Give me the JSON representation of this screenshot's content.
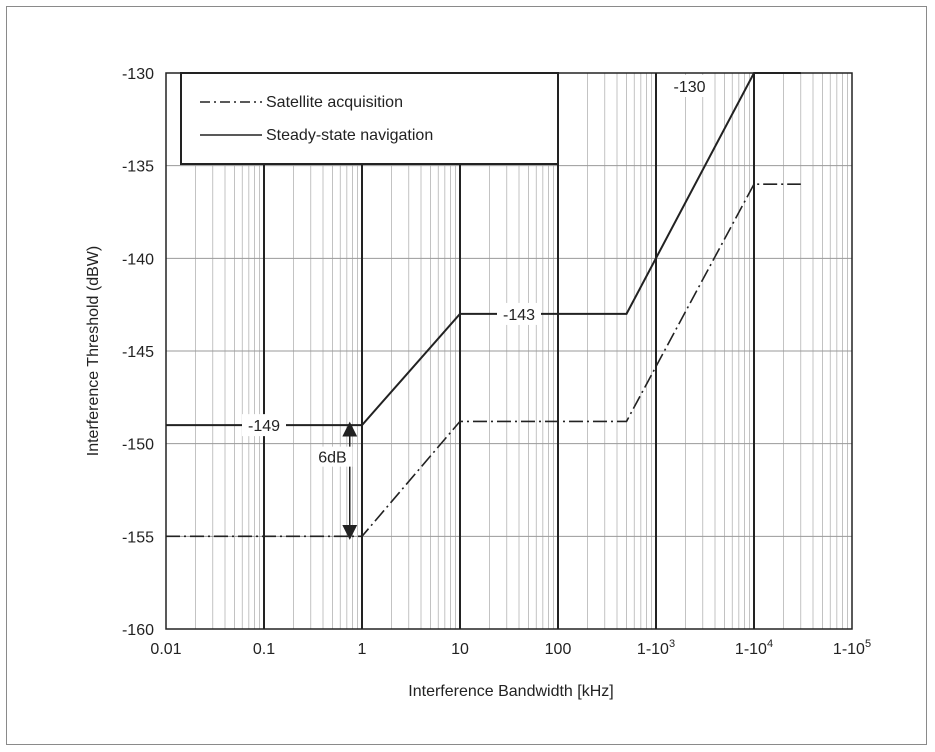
{
  "chart_data": {
    "type": "line",
    "title": "",
    "xlabel": "Interference Bandwidth [kHz]",
    "ylabel": "Interference Threshold (dBW)",
    "x_scale": "log",
    "xlim": [
      0.01,
      100000
    ],
    "ylim": [
      -160,
      -130
    ],
    "grid": true,
    "x_tick_values": [
      0.01,
      0.1,
      1,
      10,
      100,
      1000,
      10000,
      100000
    ],
    "x_tick_labels": [
      {
        "base": "0.01",
        "exp": ""
      },
      {
        "base": "0.1",
        "exp": ""
      },
      {
        "base": "1",
        "exp": ""
      },
      {
        "base": "10",
        "exp": ""
      },
      {
        "base": "100",
        "exp": ""
      },
      {
        "base": "1-10",
        "exp": "3"
      },
      {
        "base": "1-10",
        "exp": "4"
      },
      {
        "base": "1-10",
        "exp": "5"
      }
    ],
    "y_ticks": [
      -130,
      -135,
      -140,
      -145,
      -150,
      -155,
      -160
    ],
    "legend": {
      "placement": "top-left",
      "entries": [
        {
          "label": "Satellite acquisition",
          "style": "dash-dot"
        },
        {
          "label": "Steady-state navigation",
          "style": "solid"
        }
      ]
    },
    "series": [
      {
        "name": "Steady-state navigation",
        "style": "solid",
        "color": "#222222",
        "points": [
          [
            0.01,
            -149
          ],
          [
            1,
            -149
          ],
          [
            10,
            -143
          ],
          [
            500,
            -143
          ],
          [
            10000,
            -130
          ],
          [
            30000,
            -130
          ]
        ]
      },
      {
        "name": "Satellite acquisition",
        "style": "dash-dot",
        "color": "#222222",
        "points": [
          [
            0.01,
            -155
          ],
          [
            1,
            -155
          ],
          [
            10,
            -148.8
          ],
          [
            500,
            -148.8
          ],
          [
            10000,
            -136
          ],
          [
            30000,
            -136
          ]
        ]
      }
    ],
    "annotations": [
      {
        "text": "-149",
        "x": 0.1,
        "y": -149
      },
      {
        "text": "-143",
        "x": 40,
        "y": -143
      },
      {
        "text": "-130",
        "x": 2200,
        "y": -130.7
      },
      {
        "text": "6dB",
        "x": 0.5,
        "y": -150.7,
        "arrow_from": -149,
        "arrow_to": -155,
        "arrow_x": 0.75
      }
    ]
  }
}
